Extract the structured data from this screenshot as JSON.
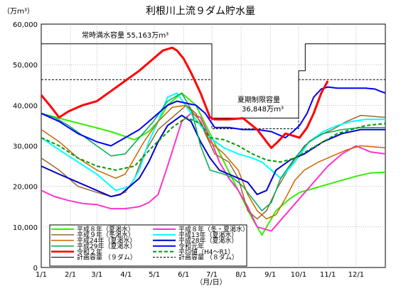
{
  "chart_data": {
    "type": "line",
    "title": "利根川上流９ダム貯水量",
    "ylabel": "（万ｍ³）",
    "xlabel": "（月/日）",
    "ylim": [
      0,
      60000
    ],
    "yticks": [
      "0",
      "10,000",
      "20,000",
      "30,000",
      "40,000",
      "50,000",
      "60,000"
    ],
    "xlim": [
      1,
      366
    ],
    "xticks": [
      {
        "label": "1/1",
        "day": 1
      },
      {
        "label": "2/1",
        "day": 32
      },
      {
        "label": "3/1",
        "day": 60
      },
      {
        "label": "4/1",
        "day": 91
      },
      {
        "label": "5/1",
        "day": 121
      },
      {
        "label": "6/1",
        "day": 152
      },
      {
        "label": "7/1",
        "day": 182
      },
      {
        "label": "8/1",
        "day": 213
      },
      {
        "label": "9/1",
        "day": 244
      },
      {
        "label": "10/1",
        "day": 274
      },
      {
        "label": "11/1",
        "day": 305
      },
      {
        "label": "12/1",
        "day": 335
      }
    ],
    "grid": true,
    "legend": "bottom-left",
    "annotations": {
      "normal_capacity": "常時満水容量  55,163万ｍ³",
      "summer_capacity_1": "夏期制限容量",
      "summer_capacity_2": "36,848万ｍ³"
    },
    "series": [
      {
        "name": "平成８年（夏渇水）",
        "color": "#33ee00",
        "width": 2,
        "x": [
          1,
          25,
          50,
          75,
          100,
          115,
          125,
          135,
          150,
          165,
          180,
          195,
          210,
          225,
          235,
          240,
          250,
          265,
          275,
          290,
          305,
          320,
          335,
          350,
          366
        ],
        "y": [
          38000,
          36500,
          35000,
          33500,
          31500,
          33500,
          36000,
          40000,
          43000,
          40000,
          33000,
          26000,
          19000,
          12000,
          8000,
          10000,
          14000,
          17000,
          18500,
          19500,
          20500,
          21500,
          22500,
          23300,
          23500
        ]
      },
      {
        "name": "平成８年（冬・夏渇水）",
        "color": "#ff33cc",
        "width": 2,
        "x": [
          1,
          15,
          30,
          45,
          60,
          75,
          90,
          105,
          115,
          125,
          135,
          150,
          160,
          170,
          180,
          190,
          200,
          210,
          220,
          230,
          245,
          260,
          275,
          290,
          305,
          320,
          335,
          350,
          366
        ],
        "y": [
          19000,
          17500,
          16500,
          15800,
          15500,
          14500,
          14500,
          15000,
          16000,
          18000,
          25000,
          36000,
          38000,
          37000,
          32000,
          26000,
          22000,
          19000,
          15000,
          10000,
          9000,
          13000,
          17000,
          21000,
          25000,
          28000,
          30000,
          28500,
          28000
        ]
      },
      {
        "name": "平成９年（冬渇水）",
        "color": "#996633",
        "width": 1.5,
        "x": [
          1,
          20,
          40,
          60,
          75,
          90,
          100,
          110,
          125,
          140,
          155,
          165,
          175,
          185,
          200,
          210,
          220,
          230,
          240,
          250,
          265,
          280,
          295,
          310,
          325,
          340,
          366
        ],
        "y": [
          27000,
          24000,
          20000,
          18500,
          17500,
          18500,
          22000,
          28000,
          34000,
          37000,
          40000,
          38000,
          33000,
          28000,
          26000,
          22000,
          14000,
          12000,
          14000,
          19000,
          25000,
          30000,
          32500,
          34000,
          36000,
          37500,
          37000
        ]
      },
      {
        "name": "平成13年（夏渇水）",
        "color": "#00ffff",
        "width": 2,
        "x": [
          1,
          20,
          40,
          60,
          80,
          95,
          105,
          115,
          125,
          135,
          145,
          160,
          170,
          180,
          195,
          210,
          225,
          235,
          245,
          255,
          270,
          285,
          300,
          315,
          330,
          345,
          366
        ],
        "y": [
          32000,
          29000,
          26000,
          23000,
          19000,
          20000,
          24000,
          31000,
          36000,
          42000,
          43000,
          38000,
          35000,
          32000,
          29500,
          28000,
          27000,
          26000,
          24000,
          22000,
          26000,
          31000,
          33500,
          35000,
          36000,
          36500,
          36500
        ]
      },
      {
        "name": "平成24年（夏渇水）",
        "color": "#cc6600",
        "width": 1.5,
        "x": [
          1,
          20,
          40,
          60,
          80,
          90,
          100,
          110,
          125,
          140,
          155,
          170,
          180,
          195,
          210,
          220,
          230,
          240,
          250,
          260,
          270,
          280,
          295,
          310,
          325,
          340,
          366
        ],
        "y": [
          34000,
          31000,
          27000,
          24000,
          22000,
          23000,
          27000,
          31000,
          36000,
          39500,
          40000,
          36000,
          31000,
          28000,
          24000,
          18000,
          14000,
          12000,
          13000,
          17000,
          21500,
          24000,
          26000,
          27500,
          29000,
          30000,
          29500
        ]
      },
      {
        "name": "平成28年（夏渇水）",
        "color": "#0000cc",
        "width": 2,
        "x": [
          1,
          20,
          40,
          60,
          75,
          85,
          95,
          105,
          115,
          125,
          135,
          150,
          160,
          170,
          180,
          190,
          200,
          210,
          220,
          230,
          240,
          250,
          265,
          280,
          300,
          320,
          340,
          366
        ],
        "y": [
          25000,
          23000,
          21000,
          19000,
          17500,
          18000,
          20000,
          22000,
          26000,
          31000,
          35000,
          37500,
          36000,
          31000,
          27000,
          24000,
          23000,
          22000,
          21000,
          18000,
          19000,
          24000,
          26500,
          28000,
          31000,
          33000,
          34000,
          34000
        ]
      },
      {
        "name": "平成29年（夏渇水）",
        "color": "#00aa55",
        "width": 1.5,
        "x": [
          1,
          15,
          30,
          45,
          60,
          75,
          90,
          105,
          120,
          135,
          150,
          160,
          170,
          180,
          195,
          205,
          215,
          225,
          235,
          245,
          255,
          270,
          285,
          300,
          320,
          340,
          366
        ],
        "y": [
          38000,
          37000,
          35000,
          32500,
          30000,
          27500,
          28000,
          32000,
          36000,
          41000,
          43000,
          39000,
          30000,
          24000,
          23000,
          22000,
          20000,
          17000,
          14000,
          16000,
          22000,
          27000,
          31000,
          33000,
          34000,
          34500,
          34500
        ]
      },
      {
        "name": "令和元年",
        "color": "#0000ff",
        "width": 2,
        "x": [
          1,
          20,
          40,
          60,
          75,
          90,
          105,
          115,
          125,
          135,
          145,
          155,
          165,
          175,
          185,
          200,
          215,
          230,
          245,
          260,
          268,
          275,
          283,
          290,
          298,
          305,
          315,
          325,
          335,
          345,
          355,
          360,
          366
        ],
        "y": [
          38000,
          36000,
          33000,
          31000,
          30000,
          32000,
          34000,
          36000,
          38000,
          40000,
          41000,
          40500,
          40000,
          38000,
          34500,
          34500,
          34000,
          34000,
          33500,
          32000,
          33500,
          35000,
          38000,
          42000,
          44000,
          44500,
          44200,
          44200,
          44200,
          44200,
          44000,
          43500,
          43000
        ]
      },
      {
        "name": "令和２年",
        "color": "#ff0000",
        "width": 3,
        "x": [
          1,
          10,
          20,
          30,
          45,
          60,
          75,
          90,
          105,
          120,
          130,
          140,
          145,
          152,
          160,
          170,
          180,
          185,
          190,
          200,
          215,
          230,
          240,
          245,
          252,
          260,
          268,
          275,
          283,
          290,
          298,
          305
        ],
        "y": [
          42500,
          40000,
          37000,
          38500,
          40000,
          41000,
          43500,
          46000,
          48500,
          51500,
          53500,
          54200,
          53500,
          51500,
          48000,
          43000,
          37000,
          36500,
          36500,
          36500,
          36800,
          34000,
          31000,
          29500,
          31000,
          33000,
          32500,
          32000,
          34500,
          38000,
          43000,
          46000
        ]
      },
      {
        "name": "平均値（H4～R1）",
        "color": "#009900",
        "width": 2,
        "dash": "5,3",
        "x": [
          1,
          20,
          40,
          60,
          80,
          100,
          120,
          140,
          155,
          170,
          180,
          195,
          210,
          225,
          240,
          255,
          270,
          285,
          300,
          315,
          330,
          345,
          366
        ],
        "y": [
          32000,
          30000,
          27000,
          25000,
          24000,
          25000,
          30000,
          34500,
          37000,
          35500,
          32000,
          31500,
          30000,
          28000,
          26500,
          26000,
          27000,
          29000,
          31000,
          33000,
          34000,
          35000,
          35500
        ]
      },
      {
        "name": "計画容量 （９ダム）",
        "color": "#000000",
        "width": 1,
        "x": [
          1,
          182,
          182,
          274,
          274,
          281,
          281,
          366
        ],
        "y": [
          55163,
          55163,
          36848,
          36848,
          48500,
          48500,
          55163,
          55163
        ]
      },
      {
        "name": "計画容量 （８ダム）",
        "color": "#000000",
        "width": 1,
        "dash": "3,2",
        "x": [
          1,
          182,
          182,
          274,
          274,
          366
        ],
        "y": [
          46300,
          46300,
          34200,
          34200,
          46300,
          46300
        ]
      }
    ]
  }
}
